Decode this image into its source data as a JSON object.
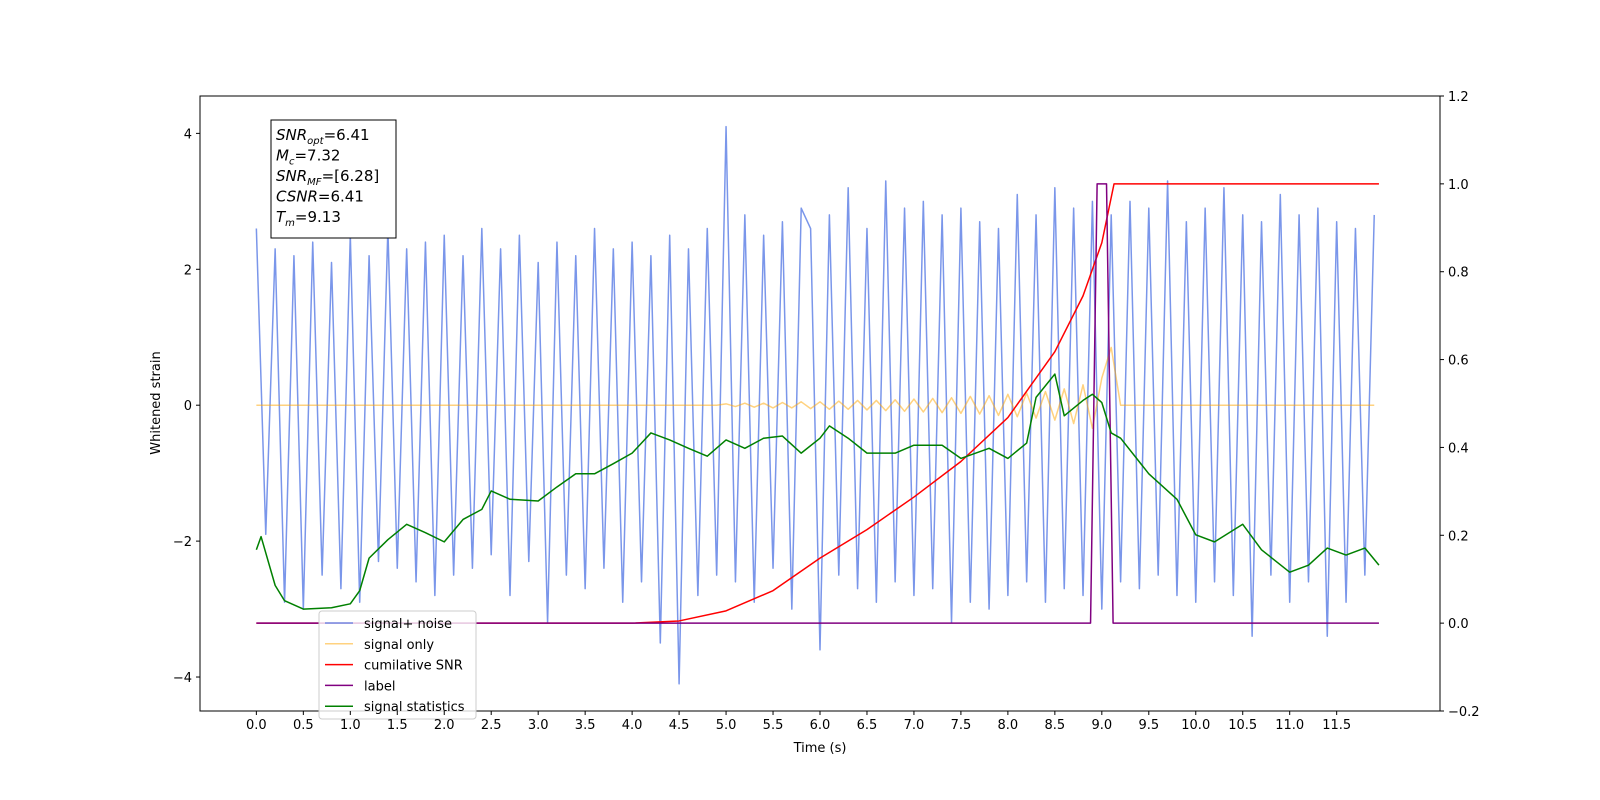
{
  "chart_data": {
    "type": "line",
    "xlabel": "Time (s)",
    "ylabel": "Whitened strain",
    "xlim": [
      -0.6,
      12.6
    ],
    "xticks": [
      {
        "value": 0,
        "label": "0.0"
      },
      0.5,
      {
        "value": 1,
        "label": "1.0"
      },
      1.5,
      {
        "value": 2,
        "label": "2.0"
      },
      2.5,
      {
        "value": 3,
        "label": "3.0"
      },
      3.5,
      {
        "value": 4,
        "label": "4.0"
      },
      4.5,
      {
        "value": 5,
        "label": "5.0"
      },
      5.5,
      {
        "value": 6,
        "label": "6.0"
      },
      6.5,
      {
        "value": 7,
        "label": "7.0"
      },
      7.5,
      {
        "value": 8,
        "label": "8.0"
      },
      8.5,
      {
        "value": 9,
        "label": "9.0"
      },
      9.5,
      {
        "value": 10,
        "label": "10.0"
      },
      10.5,
      {
        "value": 11,
        "label": "11.0"
      },
      11.5
    ],
    "ylim": [
      -4.5,
      4.55
    ],
    "yticks": [
      {
        "value": -4,
        "label": "−4"
      },
      {
        "value": -2,
        "label": "−2"
      },
      0,
      2,
      4
    ],
    "y2lim": [
      -0.2,
      1.2
    ],
    "y2ticks": [
      {
        "value": -0.2,
        "label": "−0.2"
      },
      {
        "value": 0,
        "label": "0.0"
      },
      0.2,
      0.4,
      0.6,
      0.8,
      {
        "value": 1,
        "label": "1.0"
      },
      1.2
    ],
    "annotations": [
      {
        "base": "SNR",
        "sub": "opt",
        "text": "=6.41"
      },
      {
        "base": "M",
        "sub": "c",
        "text": "=7.32"
      },
      {
        "base": "SNR",
        "sub": "MF",
        "text": "=[6.28]"
      },
      {
        "base": "CSNR",
        "sub": "",
        "text": "=6.41"
      },
      {
        "base": "T",
        "sub": "m",
        "text": "=9.13"
      }
    ],
    "series": [
      {
        "name": "signal+ noise",
        "color": "#4169e1",
        "alpha": 0.7,
        "x": [
          0,
          0.1,
          0.2,
          0.3,
          0.4,
          0.5,
          0.6,
          0.7,
          0.8,
          0.9,
          1,
          1.1,
          1.2,
          1.3,
          1.4,
          1.5,
          1.6,
          1.7,
          1.8,
          1.9,
          2,
          2.1,
          2.2,
          2.3,
          2.4,
          2.5,
          2.6,
          2.7,
          2.8,
          2.9,
          3,
          3.1,
          3.2,
          3.3,
          3.4,
          3.5,
          3.6,
          3.7,
          3.8,
          3.9,
          4,
          4.1,
          4.2,
          4.3,
          4.4,
          4.5,
          4.6,
          4.7,
          4.8,
          4.9,
          5,
          5.1,
          5.2,
          5.3,
          5.4,
          5.5,
          5.6,
          5.7,
          5.8,
          5.9,
          6,
          6.1,
          6.2,
          6.3,
          6.4,
          6.5,
          6.6,
          6.7,
          6.8,
          6.9,
          7,
          7.1,
          7.2,
          7.3,
          7.4,
          7.5,
          7.6,
          7.7,
          7.8,
          7.9,
          8,
          8.1,
          8.2,
          8.3,
          8.4,
          8.5,
          8.6,
          8.7,
          8.8,
          8.9,
          9,
          9.1,
          9.2,
          9.3,
          9.4,
          9.5,
          9.6,
          9.7,
          9.8,
          9.9,
          10,
          10.1,
          10.2,
          10.3,
          10.4,
          10.5,
          10.6,
          10.7,
          10.8,
          10.9,
          11,
          11.1,
          11.2,
          11.3,
          11.4,
          11.5,
          11.6,
          11.7,
          11.8,
          11.9
        ],
        "values": [
          2.6,
          -1.9,
          2.3,
          -2.9,
          2.2,
          -3.0,
          2.4,
          -2.5,
          2.1,
          -2.7,
          2.5,
          -2.9,
          2.2,
          -2.3,
          2.6,
          -2.4,
          2.3,
          -2.6,
          2.4,
          -2.8,
          2.5,
          -2.5,
          2.2,
          -2.4,
          2.6,
          -2.2,
          2.3,
          -2.8,
          2.5,
          -2.3,
          2.1,
          -3.2,
          2.4,
          -2.5,
          2.2,
          -2.7,
          2.6,
          -2.4,
          2.3,
          -2.9,
          2.4,
          -2.6,
          2.2,
          -3.5,
          2.5,
          -4.1,
          2.3,
          -2.8,
          2.6,
          -2.5,
          4.1,
          -2.6,
          2.8,
          -2.9,
          2.5,
          -2.4,
          2.7,
          -3.0,
          2.9,
          2.6,
          -3.6,
          2.8,
          -2.5,
          3.2,
          -2.7,
          2.6,
          -2.9,
          3.3,
          -2.6,
          2.9,
          -2.8,
          3.0,
          -2.7,
          2.8,
          -3.2,
          2.9,
          -2.9,
          2.7,
          -3.0,
          2.6,
          -2.8,
          3.1,
          -2.6,
          2.8,
          -2.9,
          3.2,
          -2.7,
          2.9,
          -2.8,
          3.0,
          -3.0,
          2.8,
          -2.6,
          3.0,
          -2.7,
          2.9,
          -2.5,
          3.3,
          -2.8,
          2.7,
          -2.9,
          2.9,
          -2.6,
          3.2,
          -2.8,
          2.8,
          -3.4,
          2.7,
          -2.5,
          3.1,
          -2.9,
          2.8,
          -2.6,
          2.9,
          -3.4,
          2.7,
          -2.9,
          2.6,
          -2.5,
          2.8
        ]
      },
      {
        "name": "signal only",
        "color": "#ffa500",
        "alpha": 0.5,
        "x": [
          0,
          0.1,
          0.2,
          0.3,
          0.4,
          0.5,
          0.6,
          0.7,
          0.8,
          0.9,
          1,
          1.1,
          1.2,
          1.3,
          1.4,
          1.5,
          1.6,
          1.7,
          1.8,
          1.9,
          2,
          2.1,
          2.2,
          2.3,
          2.4,
          2.5,
          2.6,
          2.7,
          2.8,
          2.9,
          3,
          3.1,
          3.2,
          3.3,
          3.4,
          3.5,
          3.6,
          3.7,
          3.8,
          3.9,
          4,
          4.1,
          4.2,
          4.3,
          4.4,
          4.5,
          4.6,
          4.7,
          4.8,
          4.9,
          5,
          5.1,
          5.2,
          5.3,
          5.4,
          5.5,
          5.6,
          5.7,
          5.8,
          5.9,
          6,
          6.1,
          6.2,
          6.3,
          6.4,
          6.5,
          6.6,
          6.7,
          6.8,
          6.9,
          7,
          7.1,
          7.2,
          7.3,
          7.4,
          7.5,
          7.6,
          7.7,
          7.8,
          7.9,
          8,
          8.1,
          8.2,
          8.3,
          8.4,
          8.5,
          8.6,
          8.7,
          8.8,
          8.9,
          9,
          9.1,
          9.2,
          9.3,
          9.4,
          9.5,
          9.6,
          9.7,
          9.8,
          9.9,
          10,
          10.1,
          10.2,
          10.3,
          10.4,
          10.5,
          10.6,
          10.7,
          10.8,
          10.9,
          11,
          11.1,
          11.2,
          11.3,
          11.4,
          11.5,
          11.6,
          11.7,
          11.8,
          11.9
        ],
        "values": [
          0,
          0,
          0,
          0,
          0,
          0,
          0,
          0,
          0,
          0,
          0,
          0,
          0,
          0,
          0,
          0,
          0,
          0,
          0,
          0,
          0,
          0,
          0,
          0,
          0,
          0,
          0,
          0,
          0,
          0,
          0,
          0,
          0,
          0,
          0,
          0,
          0,
          0,
          0,
          0,
          0,
          0,
          0,
          0,
          0,
          0,
          0,
          0,
          0,
          0,
          0.02,
          -0.02,
          0.03,
          -0.03,
          0.03,
          -0.04,
          0.04,
          -0.04,
          0.05,
          -0.05,
          0.05,
          -0.06,
          0.06,
          -0.06,
          0.07,
          -0.07,
          0.07,
          -0.08,
          0.08,
          -0.09,
          0.09,
          -0.1,
          0.1,
          -0.11,
          0.11,
          -0.12,
          0.13,
          -0.13,
          0.14,
          -0.15,
          0.16,
          -0.17,
          0.18,
          -0.19,
          0.2,
          -0.22,
          0.24,
          -0.27,
          0.3,
          -0.34,
          0.4,
          0.85,
          0,
          0,
          0,
          0,
          0,
          0,
          0,
          0,
          0,
          0,
          0,
          0,
          0,
          0,
          0,
          0,
          0,
          0,
          0,
          0,
          0,
          0,
          0,
          0,
          0,
          0,
          0,
          0
        ]
      },
      {
        "name": "cumilative SNR",
        "color": "#ff0000",
        "axis": "y2",
        "x": [
          0,
          4,
          4.5,
          5,
          5.5,
          6,
          6.5,
          7,
          7.5,
          8,
          8.5,
          8.8,
          9,
          9.13,
          11.95
        ],
        "values": [
          0,
          0,
          0.005,
          0.028,
          0.074,
          0.148,
          0.213,
          0.287,
          0.368,
          0.468,
          0.618,
          0.745,
          0.866,
          1,
          1
        ]
      },
      {
        "name": "label",
        "color": "#800080",
        "axis": "y2",
        "x": [
          0,
          8.88,
          8.95,
          9.05,
          9.12,
          11.95
        ],
        "values": [
          0,
          0,
          1,
          1,
          0,
          0
        ]
      },
      {
        "name": "signal statistics",
        "color": "#008000",
        "axis": "y2",
        "x": [
          0,
          0.05,
          0.2,
          0.3,
          0.5,
          0.8,
          1,
          1.1,
          1.2,
          1.4,
          1.6,
          1.8,
          2,
          2.2,
          2.4,
          2.5,
          2.7,
          3,
          3.2,
          3.4,
          3.6,
          3.8,
          4,
          4.2,
          4.4,
          4.6,
          4.8,
          5,
          5.2,
          5.4,
          5.6,
          5.8,
          6,
          6.1,
          6.3,
          6.5,
          6.8,
          7,
          7.3,
          7.5,
          7.8,
          8,
          8.2,
          8.3,
          8.5,
          8.6,
          8.8,
          8.9,
          9,
          9.1,
          9.2,
          9.5,
          9.8,
          10,
          10.2,
          10.5,
          10.7,
          11,
          11.2,
          11.4,
          11.6,
          11.8,
          11.95
        ],
        "values": [
          0.167,
          0.197,
          0.086,
          0.051,
          0.032,
          0.035,
          0.044,
          0.074,
          0.148,
          0.19,
          0.225,
          0.206,
          0.185,
          0.236,
          0.259,
          0.301,
          0.282,
          0.278,
          0.31,
          0.34,
          0.34,
          0.363,
          0.387,
          0.433,
          0.417,
          0.398,
          0.38,
          0.417,
          0.398,
          0.421,
          0.426,
          0.387,
          0.421,
          0.449,
          0.421,
          0.387,
          0.387,
          0.405,
          0.405,
          0.375,
          0.398,
          0.375,
          0.41,
          0.514,
          0.567,
          0.472,
          0.507,
          0.521,
          0.502,
          0.433,
          0.421,
          0.34,
          0.282,
          0.201,
          0.185,
          0.225,
          0.167,
          0.116,
          0.132,
          0.171,
          0.155,
          0.171,
          0.132
        ]
      }
    ]
  }
}
